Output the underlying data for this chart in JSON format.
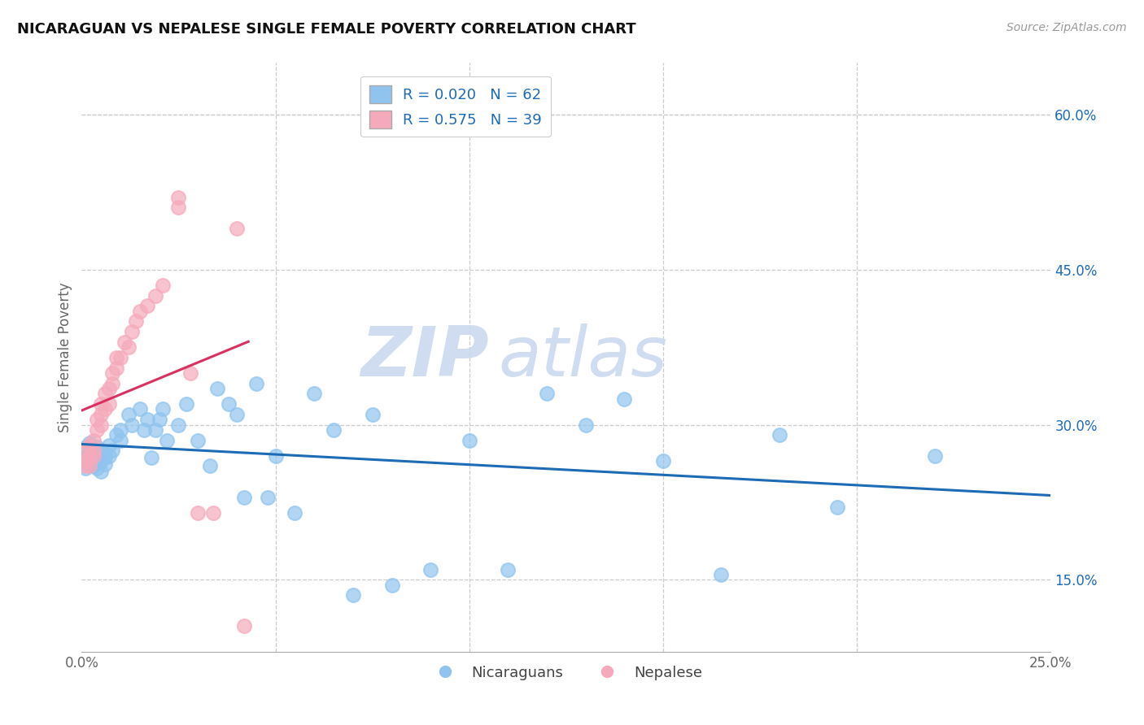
{
  "title": "NICARAGUAN VS NEPALESE SINGLE FEMALE POVERTY CORRELATION CHART",
  "source": "Source: ZipAtlas.com",
  "ylabel": "Single Female Poverty",
  "xlim": [
    0.0,
    0.25
  ],
  "ylim": [
    0.08,
    0.65
  ],
  "xtick_pos": [
    0.0,
    0.05,
    0.1,
    0.15,
    0.2,
    0.25
  ],
  "xtick_labels": [
    "0.0%",
    "",
    "",
    "",
    "",
    "25.0%"
  ],
  "yticks_right": [
    0.15,
    0.3,
    0.45,
    0.6
  ],
  "ytick_labels_right": [
    "15.0%",
    "30.0%",
    "45.0%",
    "60.0%"
  ],
  "grid_color": "#cccccc",
  "background_color": "#ffffff",
  "blue_color": "#90C4EE",
  "pink_color": "#F5AABB",
  "blue_line_color": "#1E6BB5",
  "pink_line_color": "#D93060",
  "R_blue": 0.02,
  "N_blue": 62,
  "R_pink": 0.575,
  "N_pink": 39,
  "legend_label_blue": "Nicaraguans",
  "legend_label_pink": "Nepalese",
  "watermark_zip": "ZIP",
  "watermark_atlas": "atlas",
  "blue_x": [
    0.001,
    0.001,
    0.001,
    0.002,
    0.002,
    0.002,
    0.003,
    0.003,
    0.003,
    0.003,
    0.004,
    0.004,
    0.004,
    0.005,
    0.005,
    0.005,
    0.006,
    0.006,
    0.007,
    0.007,
    0.008,
    0.009,
    0.01,
    0.01,
    0.012,
    0.013,
    0.015,
    0.016,
    0.017,
    0.018,
    0.019,
    0.02,
    0.021,
    0.022,
    0.025,
    0.027,
    0.03,
    0.033,
    0.035,
    0.038,
    0.04,
    0.042,
    0.045,
    0.048,
    0.05,
    0.055,
    0.06,
    0.065,
    0.07,
    0.075,
    0.08,
    0.09,
    0.1,
    0.11,
    0.12,
    0.13,
    0.14,
    0.15,
    0.165,
    0.18,
    0.195,
    0.22
  ],
  "blue_y": [
    0.268,
    0.278,
    0.258,
    0.272,
    0.262,
    0.282,
    0.265,
    0.275,
    0.26,
    0.27,
    0.268,
    0.278,
    0.258,
    0.265,
    0.275,
    0.255,
    0.268,
    0.262,
    0.27,
    0.28,
    0.275,
    0.29,
    0.285,
    0.295,
    0.31,
    0.3,
    0.315,
    0.295,
    0.305,
    0.268,
    0.295,
    0.305,
    0.315,
    0.285,
    0.3,
    0.32,
    0.285,
    0.26,
    0.335,
    0.32,
    0.31,
    0.23,
    0.34,
    0.23,
    0.27,
    0.215,
    0.33,
    0.295,
    0.135,
    0.31,
    0.145,
    0.16,
    0.285,
    0.16,
    0.33,
    0.3,
    0.325,
    0.265,
    0.155,
    0.29,
    0.22,
    0.27
  ],
  "pink_x": [
    0.001,
    0.001,
    0.001,
    0.002,
    0.002,
    0.002,
    0.002,
    0.003,
    0.003,
    0.003,
    0.004,
    0.004,
    0.005,
    0.005,
    0.005,
    0.006,
    0.006,
    0.007,
    0.007,
    0.008,
    0.008,
    0.009,
    0.009,
    0.01,
    0.011,
    0.012,
    0.013,
    0.014,
    0.015,
    0.017,
    0.019,
    0.021,
    0.025,
    0.025,
    0.028,
    0.03,
    0.034,
    0.04,
    0.042
  ],
  "pink_y": [
    0.265,
    0.275,
    0.26,
    0.27,
    0.28,
    0.268,
    0.26,
    0.275,
    0.285,
    0.27,
    0.295,
    0.305,
    0.31,
    0.3,
    0.32,
    0.315,
    0.33,
    0.32,
    0.335,
    0.34,
    0.35,
    0.355,
    0.365,
    0.365,
    0.38,
    0.375,
    0.39,
    0.4,
    0.41,
    0.415,
    0.425,
    0.435,
    0.51,
    0.52,
    0.35,
    0.215,
    0.215,
    0.49,
    0.105
  ]
}
